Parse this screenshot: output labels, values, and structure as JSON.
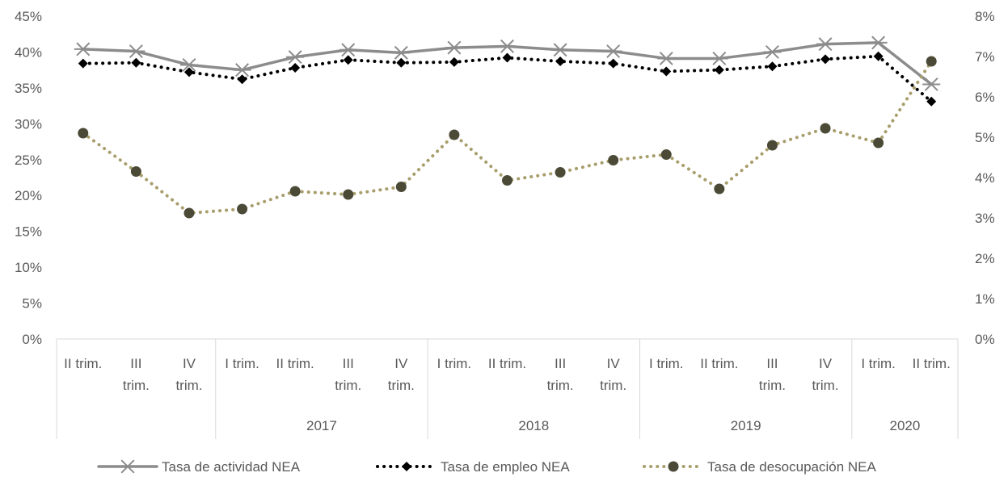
{
  "chart_data": {
    "type": "line",
    "x_categories": [
      {
        "quarter": [
          "II trim."
        ],
        "year": ""
      },
      {
        "quarter": [
          "III",
          "trim."
        ],
        "year": ""
      },
      {
        "quarter": [
          "IV",
          "trim."
        ],
        "year": ""
      },
      {
        "quarter": [
          "I trim."
        ],
        "year": "2017"
      },
      {
        "quarter": [
          "II trim."
        ],
        "year": "2017"
      },
      {
        "quarter": [
          "III",
          "trim."
        ],
        "year": "2017"
      },
      {
        "quarter": [
          "IV",
          "trim."
        ],
        "year": "2017"
      },
      {
        "quarter": [
          "I trim."
        ],
        "year": "2018"
      },
      {
        "quarter": [
          "II trim."
        ],
        "year": "2018"
      },
      {
        "quarter": [
          "III",
          "trim."
        ],
        "year": "2018"
      },
      {
        "quarter": [
          "IV",
          "trim."
        ],
        "year": "2018"
      },
      {
        "quarter": [
          "I trim."
        ],
        "year": "2019"
      },
      {
        "quarter": [
          "II trim."
        ],
        "year": "2019"
      },
      {
        "quarter": [
          "III",
          "trim."
        ],
        "year": "2019"
      },
      {
        "quarter": [
          "IV",
          "trim."
        ],
        "year": "2019"
      },
      {
        "quarter": [
          "I trim."
        ],
        "year": "2020"
      },
      {
        "quarter": [
          "II trim."
        ],
        "year": "2020"
      }
    ],
    "year_groups": [
      {
        "label": "",
        "start": 0,
        "end": 2
      },
      {
        "label": "2017",
        "start": 3,
        "end": 6
      },
      {
        "label": "2018",
        "start": 7,
        "end": 10
      },
      {
        "label": "2019",
        "start": 11,
        "end": 14
      },
      {
        "label": "2020",
        "start": 15,
        "end": 16
      }
    ],
    "y_left": {
      "min": 0,
      "max": 45,
      "step": 5,
      "ticks": [
        "0%",
        "5%",
        "10%",
        "15%",
        "20%",
        "25%",
        "30%",
        "35%",
        "40%",
        "45%"
      ]
    },
    "y_right": {
      "min": 0,
      "max": 8,
      "step": 1,
      "ticks": [
        "0%",
        "1%",
        "2%",
        "3%",
        "4%",
        "5%",
        "6%",
        "7%",
        "8%"
      ]
    },
    "series": [
      {
        "name": "Tasa de actividad NEA",
        "axis": "left",
        "color": "#8c8c8c",
        "style": "solid",
        "marker": "asterisk",
        "values": [
          40.4,
          40.1,
          38.2,
          37.5,
          39.3,
          40.3,
          39.9,
          40.6,
          40.8,
          40.3,
          40.1,
          39.1,
          39.1,
          40.0,
          41.1,
          41.3,
          35.5
        ]
      },
      {
        "name": "Tasa de empleo NEA",
        "axis": "left",
        "color": "#000000",
        "style": "dotted",
        "marker": "diamond",
        "values": [
          38.4,
          38.5,
          37.2,
          36.2,
          37.8,
          38.9,
          38.5,
          38.6,
          39.2,
          38.7,
          38.4,
          37.3,
          37.5,
          38.0,
          39.0,
          39.4,
          33.1
        ]
      },
      {
        "name": "Tasa de desocupación NEA",
        "axis": "right",
        "color": "#a89e6c",
        "marker_color": "#4b4a37",
        "style": "dotted",
        "marker": "circle",
        "values": [
          5.1,
          4.15,
          3.12,
          3.22,
          3.66,
          3.58,
          3.77,
          5.06,
          3.93,
          4.13,
          4.43,
          4.57,
          3.72,
          4.8,
          5.22,
          4.86,
          6.88
        ]
      }
    ],
    "grid": false,
    "legend_position": "bottom"
  }
}
